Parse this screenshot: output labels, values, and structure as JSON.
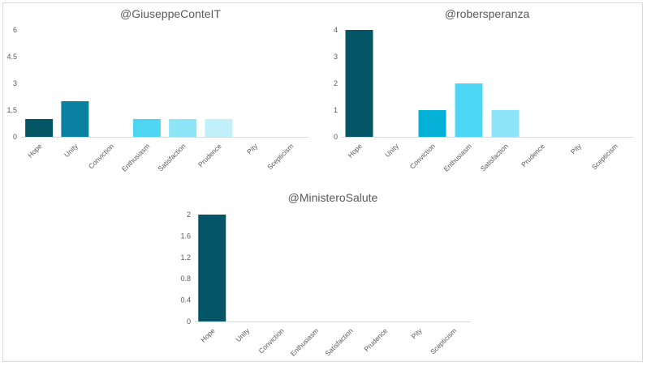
{
  "chart_data": [
    {
      "type": "bar",
      "title": "@GiuseppeConteIT",
      "categories": [
        "Hope",
        "Unity",
        "Conviction",
        "Enthusiasm",
        "Satisfaction",
        "Prudence",
        "Pity",
        "Scepticism"
      ],
      "values": [
        1,
        2,
        0,
        1,
        1,
        1,
        0,
        0
      ],
      "colors": [
        "#045566",
        "#0A81A0",
        "#1BB1D6",
        "#4DD5F1",
        "#8EE5F8",
        "#C2F0FA",
        "#DDF6FC",
        "#EAF9FD"
      ],
      "ylim": [
        0,
        6
      ],
      "yticks": [
        "0",
        "1.5",
        "3",
        "4.5",
        "6"
      ],
      "grid": false,
      "legend": "none"
    },
    {
      "type": "bar",
      "title": "@robersperanza",
      "categories": [
        "Hope",
        "Unity",
        "Conviction",
        "Enthusiasm",
        "Satisfaction",
        "Prudence",
        "Pity",
        "Scepticism"
      ],
      "values": [
        4,
        0,
        1,
        2,
        1,
        0,
        0,
        0
      ],
      "colors": [
        "#045566",
        "#0A81A0",
        "#03B0D6",
        "#4DD7F5",
        "#8EE5F8",
        "#C2F0FA",
        "#DDF6FC",
        "#EAF9FD"
      ],
      "ylim": [
        0,
        4
      ],
      "yticks": [
        "0",
        "1",
        "2",
        "3",
        "4"
      ],
      "grid": false,
      "legend": "none"
    },
    {
      "type": "bar",
      "title": "@MinisteroSalute",
      "categories": [
        "Hope",
        "Unity",
        "Conviction",
        "Enthusiasm",
        "Satisfaction",
        "Prudence",
        "Pity",
        "Scepticism"
      ],
      "values": [
        2,
        0,
        0,
        0,
        0,
        0,
        0,
        0
      ],
      "colors": [
        "#045566",
        "#0A81A0",
        "#1BB1D6",
        "#4DD5F1",
        "#8EE5F8",
        "#C2F0FA",
        "#DDF6FC",
        "#EAF9FD"
      ],
      "ylim": [
        0,
        2
      ],
      "yticks": [
        "0",
        "0.4",
        "0.8",
        "1.2",
        "1.6",
        "2"
      ],
      "grid": false,
      "legend": "none"
    }
  ]
}
